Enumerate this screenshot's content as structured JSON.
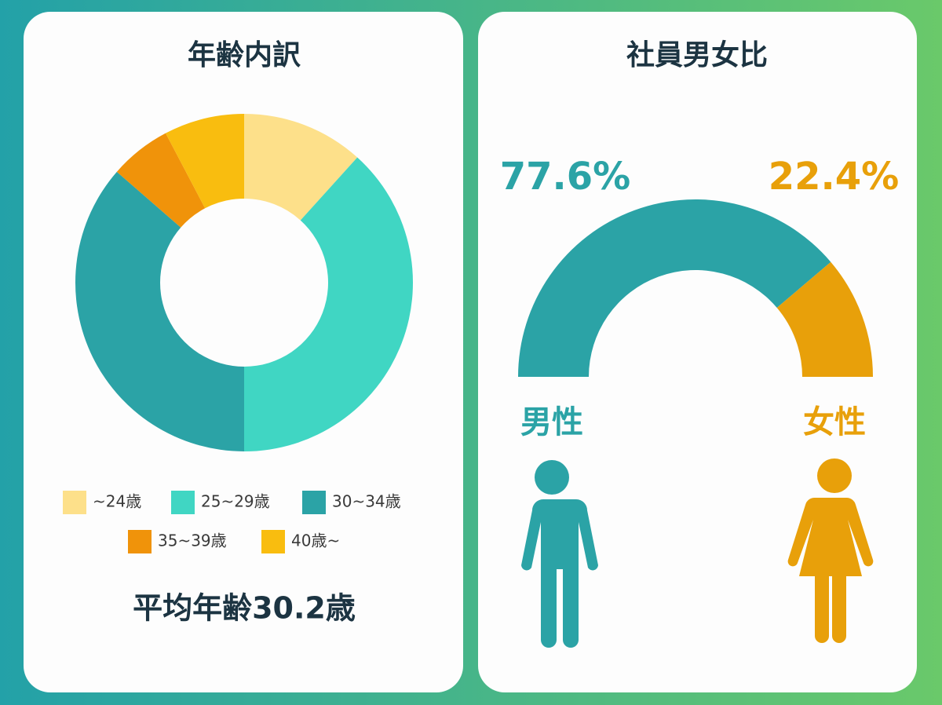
{
  "chart_data": [
    {
      "type": "donut",
      "title": "年齢内訳",
      "categories": [
        "~24歳",
        "25~29歳",
        "30~34歳",
        "35~39歳",
        "40歳~"
      ],
      "values": [
        11.7,
        38.3,
        36.4,
        5.9,
        7.7
      ],
      "colors": [
        "#fde08a",
        "#40d6c3",
        "#2ba3a6",
        "#f0930a",
        "#f9bd0f"
      ],
      "annotation": "平均年齢30.2歳"
    },
    {
      "type": "half_donut",
      "title": "社員男女比",
      "categories": [
        "男性",
        "女性"
      ],
      "values": [
        77.6,
        22.4
      ],
      "value_labels": [
        "77.6%",
        "22.4%"
      ],
      "colors": [
        "#2ba3a6",
        "#e8a00a"
      ]
    }
  ]
}
